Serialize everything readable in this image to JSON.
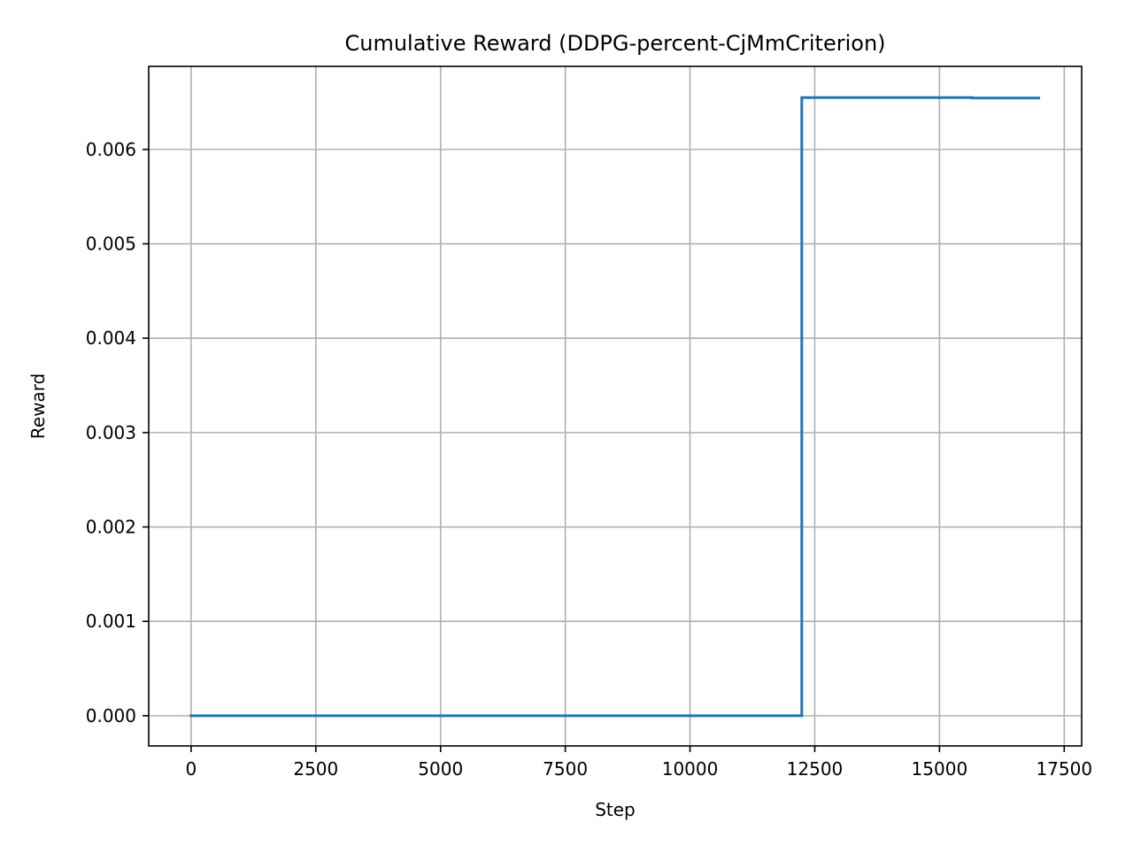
{
  "chart_data": {
    "type": "line",
    "title": "Cumulative Reward (DDPG-percent-CjMmCriterion)",
    "xlabel": "Step",
    "ylabel": "Reward",
    "xlim": [
      -850,
      17850
    ],
    "ylim": [
      -0.00032,
      0.00688
    ],
    "xticks": [
      0,
      2500,
      5000,
      7500,
      10000,
      12500,
      15000,
      17500
    ],
    "xtick_labels": [
      "0",
      "2500",
      "5000",
      "7500",
      "10000",
      "12500",
      "15000",
      "17500"
    ],
    "yticks": [
      0.0,
      0.001,
      0.002,
      0.003,
      0.004,
      0.005,
      0.006
    ],
    "ytick_labels": [
      "0.000",
      "0.001",
      "0.002",
      "0.003",
      "0.004",
      "0.005",
      "0.006"
    ],
    "grid": true,
    "legend": "none",
    "series": [
      {
        "color": "#1f77b4",
        "x": [
          0,
          12240,
          12240,
          15650,
          15650,
          16990
        ],
        "y": [
          0.0,
          0.0,
          0.00655,
          0.00655,
          0.006545,
          0.006545
        ]
      }
    ]
  }
}
